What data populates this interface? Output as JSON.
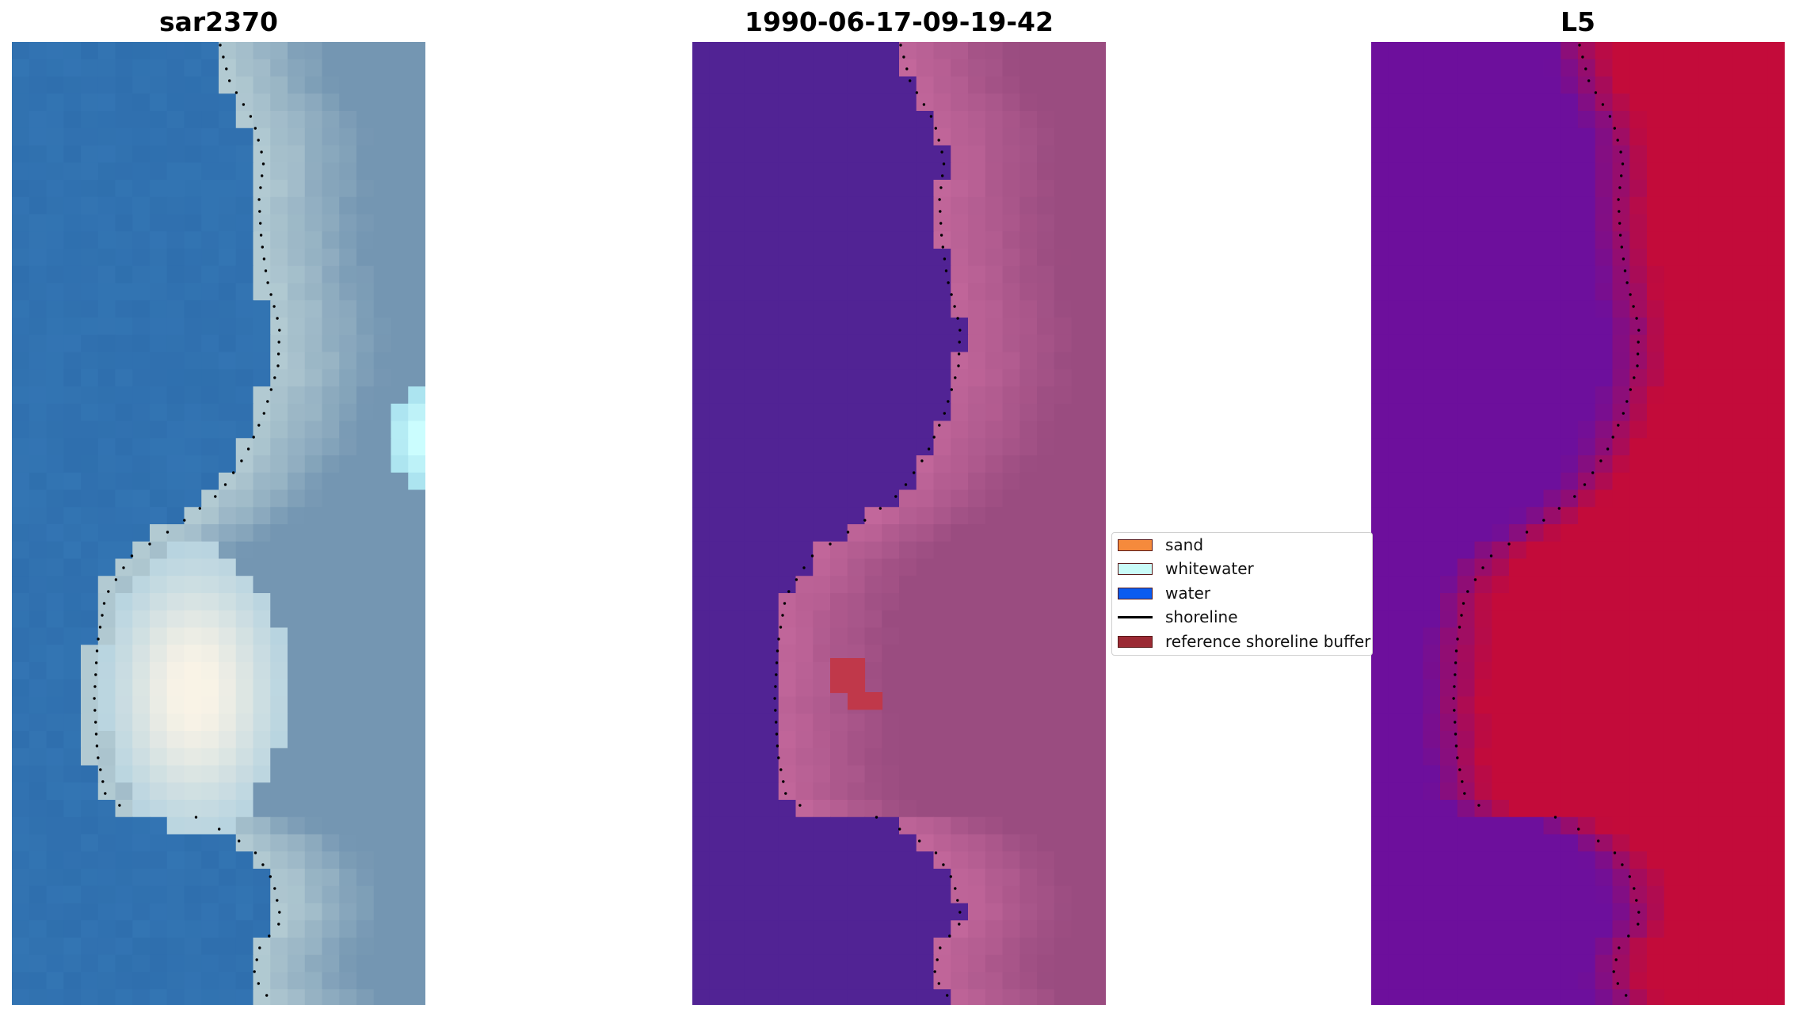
{
  "panels": [
    {
      "id": "sar",
      "title": "sar2370"
    },
    {
      "id": "classification",
      "title": "1990-06-17-09-19-42"
    },
    {
      "id": "index",
      "title": "L5"
    }
  ],
  "legend": {
    "items": [
      {
        "label": "sand",
        "type": "patch",
        "color": "#f58a3c"
      },
      {
        "label": "whitewater",
        "type": "patch",
        "color": "#c9fbf8"
      },
      {
        "label": "water",
        "type": "patch",
        "color": "#0a5cf0"
      },
      {
        "label": "shoreline",
        "type": "line",
        "color": "#000000"
      },
      {
        "label": "reference shoreline buffer",
        "type": "patch",
        "color": "#9b2a34"
      }
    ]
  },
  "colors": {
    "water_class": "#512394",
    "sand_overlay": "#9a4c80",
    "reference_buffer_cells": "#c0384a",
    "index_low": "#6d0f9c",
    "index_high": "#c30b3a",
    "sar_water": "#2f6fae",
    "sar_whitewater": "#f9f3e6"
  }
}
